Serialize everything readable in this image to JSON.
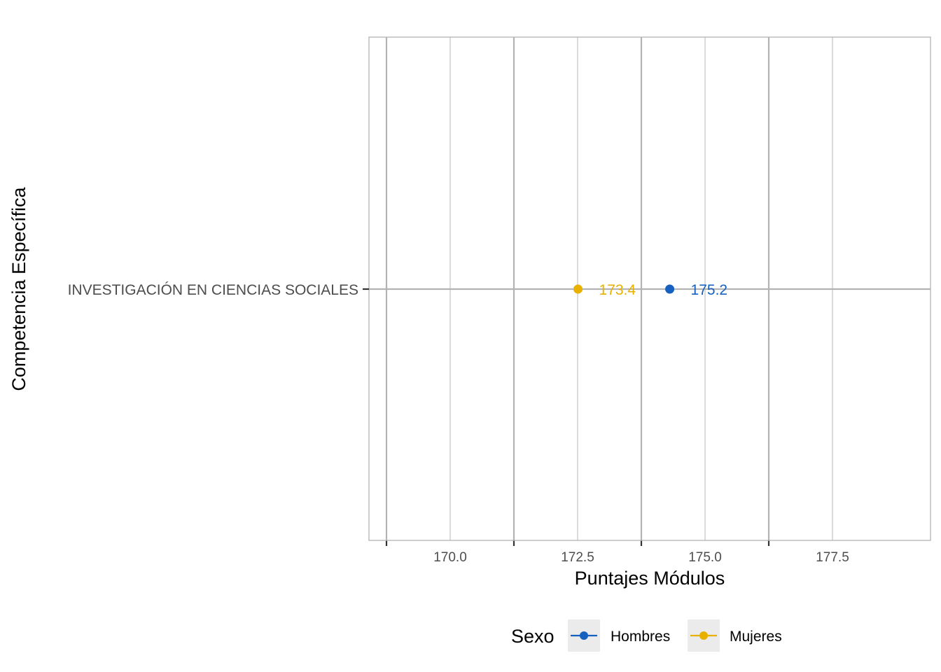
{
  "chart_data": {
    "type": "scatter",
    "categories": [
      "INVESTIGACIÓN EN CIENCIAS SOCIALES"
    ],
    "series": [
      {
        "name": "Hombres",
        "color": "#1660c0",
        "values": [
          175.2
        ]
      },
      {
        "name": "Mujeres",
        "color": "#e8b100",
        "values": [
          173.4
        ]
      }
    ],
    "data_labels": true,
    "xlabel": "Puntajes Módulos",
    "ylabel": "Competencia Específica",
    "x_ticks": [
      "170.0",
      "172.5",
      "175.0",
      "177.5"
    ],
    "xlim": [
      167.5,
      178.5
    ],
    "grid": true,
    "legend": {
      "title": "Sexo",
      "position": "bottom"
    }
  }
}
